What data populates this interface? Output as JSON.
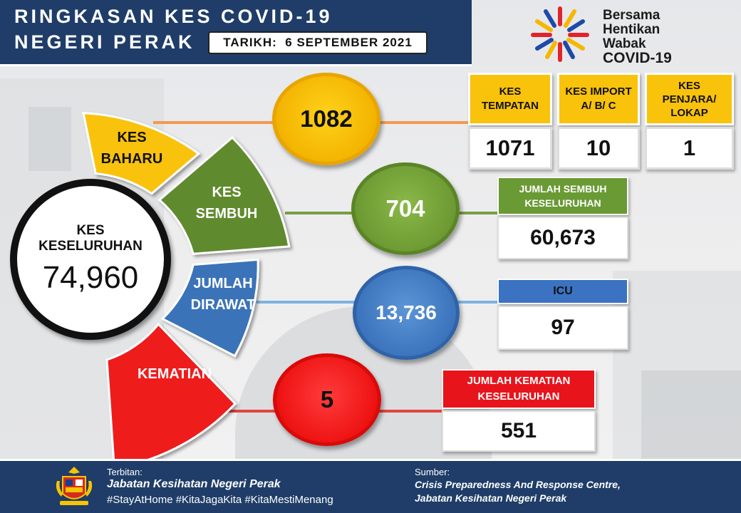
{
  "header": {
    "title_line1": "RINGKASAN KES COVID-19",
    "title_line2": "NEGERI PERAK",
    "date_label": "TARIKH:",
    "date_value": "6 SEPTEMBER 2021"
  },
  "logo": {
    "lines": [
      "Bersama",
      "Hentikan",
      "Wabak",
      "COVID-19"
    ]
  },
  "total": {
    "label_line1": "KES",
    "label_line2": "KESELURUHAN",
    "value": "74,960"
  },
  "segments": {
    "baharu": {
      "line1": "KES",
      "line2": "BAHARU",
      "color": "#f9c20b"
    },
    "sembuh": {
      "line1": "KES",
      "line2": "SEMBUH",
      "color": "#5e8a2e"
    },
    "dirawat": {
      "line1": "JUMLAH",
      "line2": "DIRAWAT",
      "color": "#3b73b9"
    },
    "kematian": {
      "line1": "KEMATIAN",
      "color": "#ef1b1b"
    }
  },
  "circles": {
    "baharu": "1082",
    "sembuh": "704",
    "dirawat": "13,736",
    "kematian": "5"
  },
  "local_cases": {
    "tempatan": {
      "label_line1": "KES",
      "label_line2": "TEMPATAN",
      "value": "1071"
    },
    "import": {
      "label_line1": "KES IMPORT",
      "label_line2": "A/ B/ C",
      "value": "10"
    },
    "penjara": {
      "label_line1": "KES",
      "label_line2": "PENJARA/",
      "label_line3": "LOKAP",
      "value": "1"
    }
  },
  "recovered_total": {
    "label_line1": "JUMLAH SEMBUH",
    "label_line2": "KESELURUHAN",
    "value": "60,673"
  },
  "icu": {
    "label": "ICU",
    "value": "97"
  },
  "deaths_total": {
    "label_line1": "JUMLAH KEMATIAN",
    "label_line2": "KESELURUHAN",
    "value": "551"
  },
  "footer": {
    "publisher_label": "Terbitan:",
    "publisher": "Jabatan Kesihatan Negeri Perak",
    "hashtags": "#StayAtHome #KitaJagaKita #KitaMestiMenang",
    "source_label": "Sumber:",
    "source_line1": "Crisis Preparedness And Response Centre,",
    "source_line2": "Jabatan Kesihatan Negeri Perak"
  }
}
